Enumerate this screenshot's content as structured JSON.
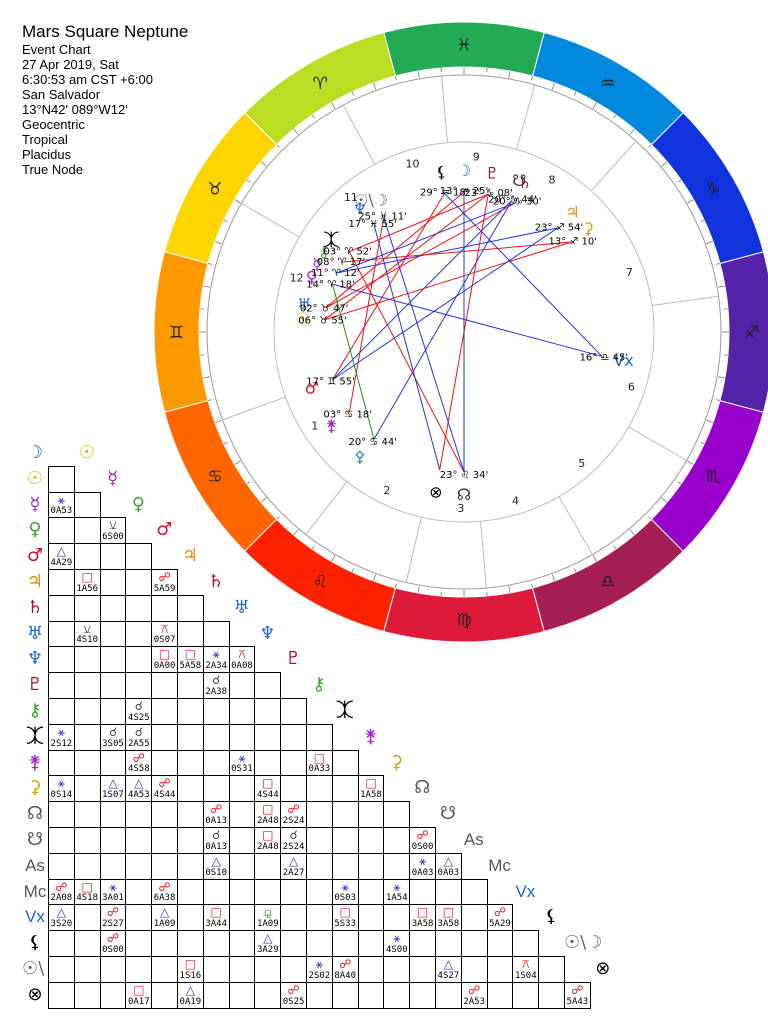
{
  "header": {
    "title": "Mars Square Neptune",
    "lines": [
      "Event Chart",
      "27 Apr 2019, Sat",
      "6:30:53 am  CST +6:00",
      "San Salvador",
      "13°N42' 089°W12'",
      "Geocentric",
      "Tropical",
      "Placidus",
      "True Node"
    ]
  },
  "colors": {
    "wheel": [
      "#ffd500",
      "#ff9900",
      "#ff6600",
      "#ff2200",
      "#dd1a3a",
      "#a51f55",
      "#9900cc",
      "#5522aa",
      "#1133dd",
      "#0088dd",
      "#22aa55",
      "#bbdd22"
    ],
    "aspect_red": "#ee1111",
    "aspect_blue": "#2233dd",
    "aspect_green": "#119911"
  },
  "wheel": {
    "signs": [
      "♉",
      "♊",
      "♋",
      "♌",
      "♍",
      "♎",
      "♏",
      "♐",
      "♑",
      "♒",
      "♓",
      "♈"
    ],
    "sign_colors": [
      "#333333",
      "#333333",
      "#333333",
      "#333333",
      "#333333",
      "#333333",
      "#333333",
      "#333333",
      "#333333",
      "#333333",
      "#333333",
      "#333333"
    ],
    "houses": [
      "1",
      "2",
      "3",
      "4",
      "5",
      "6",
      "7",
      "8",
      "9",
      "10",
      "11",
      "12"
    ],
    "angle_labels": [
      {
        "glyph": "Vx",
        "color": "#1a66cc"
      },
      {
        "glyph": "☊",
        "color": "#333333"
      }
    ],
    "planets": [
      {
        "name": "Lilith",
        "glyph": "⚸",
        "deg": "29°",
        "sign": "♒",
        "min": "18'",
        "color": "#000000"
      },
      {
        "name": "Moon",
        "glyph": "☽",
        "deg": "13°",
        "sign": "♒",
        "min": "25'",
        "color": "#1a66cc"
      },
      {
        "name": "Pluto",
        "glyph": "♇",
        "deg": "23°",
        "sign": "♑",
        "min": "08'",
        "color": "#aa1122"
      },
      {
        "name": "South Node",
        "glyph": "☋",
        "deg": "20°",
        "sign": "♑",
        "min": "44'",
        "color": "#333333"
      },
      {
        "name": "Saturn",
        "glyph": "♄",
        "deg": "20°",
        "sign": "♑",
        "min": "30'",
        "color": "#aa1122"
      },
      {
        "name": "Jupiter",
        "glyph": "♃",
        "deg": "23°",
        "sign": "♐",
        "min": "54'",
        "color": "#ee8800"
      },
      {
        "name": "Ceres",
        "glyph": "⚳",
        "deg": "13°",
        "sign": "♐",
        "min": "10'",
        "color": "#ccaa00"
      },
      {
        "name": "Vertex",
        "glyph": "Vx",
        "deg": "16°",
        "sign": "♎",
        "min": "45'",
        "color": "#1a66cc"
      },
      {
        "name": "North Node",
        "glyph": "☊",
        "deg": "23°",
        "sign": "♌",
        "min": "34'",
        "color": "#333333"
      },
      {
        "name": "Part of Fortune",
        "glyph": "⊗",
        "deg": "",
        "sign": "",
        "min": "",
        "color": "#000000"
      },
      {
        "name": "Pallas",
        "glyph": "⚴",
        "deg": "20°",
        "sign": "♋",
        "min": "44'",
        "color": "#3388cc"
      },
      {
        "name": "Juno",
        "glyph": "⚵",
        "deg": "03°",
        "sign": "♋",
        "min": "18'",
        "color": "#aa22cc"
      },
      {
        "name": "Mars",
        "glyph": "♂",
        "deg": "17°",
        "sign": "♊",
        "min": "55'",
        "color": "#cc1122"
      },
      {
        "name": "Sun",
        "glyph": "☉",
        "deg": "06°",
        "sign": "♉",
        "min": "55'",
        "color": "#ddbb00"
      },
      {
        "name": "Uranus",
        "glyph": "♅",
        "deg": "02°",
        "sign": "♉",
        "min": "47'",
        "color": "#1a66cc"
      },
      {
        "name": "Venus",
        "glyph": "♀",
        "deg": "14°",
        "sign": "♈",
        "min": "18'",
        "color": "#aa22cc"
      },
      {
        "name": "Mercury",
        "glyph": "☿",
        "deg": "11°",
        "sign": "♈",
        "min": "12'",
        "color": "#aa22cc"
      },
      {
        "name": "Chiron",
        "glyph": "⚷",
        "deg": "08°",
        "sign": "♈",
        "min": "17'",
        "color": "#33aa22"
      },
      {
        "name": "Eris",
        "glyph": "⯰",
        "deg": "03°",
        "sign": "♈",
        "min": "52'",
        "color": "#000000"
      },
      {
        "name": "Neptune",
        "glyph": "♆",
        "deg": "17°",
        "sign": "♓",
        "min": "55'",
        "color": "#1a66cc"
      },
      {
        "name": "Sun/Moon Midpoint",
        "glyph": "☉\\☽",
        "deg": "25°",
        "sign": "♓",
        "min": "11'",
        "color": "#666666"
      }
    ]
  },
  "grid": {
    "rows": [
      {
        "glyph": "☽",
        "color": "#1a66cc"
      },
      {
        "glyph": "☉",
        "color": "#ddbb00"
      },
      {
        "glyph": "☿",
        "color": "#aa22cc"
      },
      {
        "glyph": "♀",
        "color": "#33aa22"
      },
      {
        "glyph": "♂",
        "color": "#cc1122"
      },
      {
        "glyph": "♃",
        "color": "#ee8800"
      },
      {
        "glyph": "♄",
        "color": "#aa1122"
      },
      {
        "glyph": "♅",
        "color": "#1a66cc"
      },
      {
        "glyph": "♆",
        "color": "#1a66cc"
      },
      {
        "glyph": "♇",
        "color": "#aa1122"
      },
      {
        "glyph": "⚷",
        "color": "#33aa22"
      },
      {
        "glyph": "⯰",
        "color": "#000000"
      },
      {
        "glyph": "⚵",
        "color": "#aa22cc"
      },
      {
        "glyph": "⚳",
        "color": "#ccaa00"
      },
      {
        "glyph": "☊",
        "color": "#555555"
      },
      {
        "glyph": "☋",
        "color": "#555555"
      },
      {
        "glyph": "As",
        "color": "#555555"
      },
      {
        "glyph": "Mc",
        "color": "#555555"
      },
      {
        "glyph": "Vx",
        "color": "#1a66cc"
      },
      {
        "glyph": "⚸",
        "color": "#000000"
      },
      {
        "glyph": "☉\\☽",
        "color": "#666666"
      },
      {
        "glyph": "⊗",
        "color": "#000000"
      }
    ],
    "cells": [
      {
        "r": 2,
        "c": 0,
        "asp": "⚹",
        "orb": "0A53",
        "color": "#2233dd"
      },
      {
        "r": 3,
        "c": 2,
        "asp": "⚺",
        "orb": "6S00",
        "color": "#444444"
      },
      {
        "r": 4,
        "c": 0,
        "asp": "△",
        "orb": "4A29",
        "color": "#2233dd"
      },
      {
        "r": 5,
        "c": 1,
        "asp": "□",
        "orb": "1A56",
        "color": "#ee1111"
      },
      {
        "r": 5,
        "c": 4,
        "asp": "☍",
        "orb": "5A59",
        "color": "#ee1111"
      },
      {
        "r": 7,
        "c": 1,
        "asp": "⚺",
        "orb": "4S10",
        "color": "#444444"
      },
      {
        "r": 7,
        "c": 4,
        "asp": "⚻",
        "orb": "0S07",
        "color": "#ee1111"
      },
      {
        "r": 8,
        "c": 4,
        "asp": "□",
        "orb": "0A00",
        "color": "#ee1111"
      },
      {
        "r": 8,
        "c": 5,
        "asp": "□",
        "orb": "5A58",
        "color": "#ee1111"
      },
      {
        "r": 8,
        "c": 6,
        "asp": "⚹",
        "orb": "2A34",
        "color": "#2233dd"
      },
      {
        "r": 8,
        "c": 7,
        "asp": "⚻",
        "orb": "0A08",
        "color": "#ee1111"
      },
      {
        "r": 9,
        "c": 6,
        "asp": "☌",
        "orb": "2A38",
        "color": "#444444"
      },
      {
        "r": 10,
        "c": 3,
        "asp": "☌",
        "orb": "4S25",
        "color": "#444444"
      },
      {
        "r": 11,
        "c": 0,
        "asp": "⚹",
        "orb": "2S12",
        "color": "#2233dd"
      },
      {
        "r": 11,
        "c": 2,
        "asp": "☌",
        "orb": "3S05",
        "color": "#444444"
      },
      {
        "r": 11,
        "c": 3,
        "asp": "☌",
        "orb": "2A55",
        "color": "#444444"
      },
      {
        "r": 12,
        "c": 3,
        "asp": "☍",
        "orb": "4S58",
        "color": "#ee1111"
      },
      {
        "r": 12,
        "c": 7,
        "asp": "⚹",
        "orb": "0S31",
        "color": "#2233dd"
      },
      {
        "r": 12,
        "c": 10,
        "asp": "□",
        "orb": "0A33",
        "color": "#ee1111"
      },
      {
        "r": 13,
        "c": 0,
        "asp": "⚹",
        "orb": "0S14",
        "color": "#2233dd"
      },
      {
        "r": 13,
        "c": 2,
        "asp": "△",
        "orb": "1S07",
        "color": "#2233dd"
      },
      {
        "r": 13,
        "c": 3,
        "asp": "△",
        "orb": "4A53",
        "color": "#2233dd"
      },
      {
        "r": 13,
        "c": 4,
        "asp": "☍",
        "orb": "4S44",
        "color": "#ee1111"
      },
      {
        "r": 13,
        "c": 8,
        "asp": "□",
        "orb": "4S44",
        "color": "#ee1111"
      },
      {
        "r": 13,
        "c": 12,
        "asp": "□",
        "orb": "1A58",
        "color": "#ee1111"
      },
      {
        "r": 14,
        "c": 6,
        "asp": "☍",
        "orb": "0A13",
        "color": "#ee1111"
      },
      {
        "r": 14,
        "c": 8,
        "asp": "□",
        "orb": "2A48",
        "color": "#ee1111"
      },
      {
        "r": 14,
        "c": 9,
        "asp": "☍",
        "orb": "2S24",
        "color": "#ee1111"
      },
      {
        "r": 15,
        "c": 6,
        "asp": "☌",
        "orb": "0A13",
        "color": "#444444"
      },
      {
        "r": 15,
        "c": 8,
        "asp": "□",
        "orb": "2A48",
        "color": "#ee1111"
      },
      {
        "r": 15,
        "c": 9,
        "asp": "☌",
        "orb": "2S24",
        "color": "#444444"
      },
      {
        "r": 15,
        "c": 14,
        "asp": "☍",
        "orb": "0S00",
        "color": "#ee1111"
      },
      {
        "r": 16,
        "c": 6,
        "asp": "△",
        "orb": "0S10",
        "color": "#2233dd"
      },
      {
        "r": 16,
        "c": 9,
        "asp": "△",
        "orb": "2A27",
        "color": "#2233dd"
      },
      {
        "r": 16,
        "c": 14,
        "asp": "⚹",
        "orb": "0A03",
        "color": "#2233dd"
      },
      {
        "r": 16,
        "c": 15,
        "asp": "△",
        "orb": "0A03",
        "color": "#2233dd"
      },
      {
        "r": 17,
        "c": 0,
        "asp": "☍",
        "orb": "2A08",
        "color": "#ee1111"
      },
      {
        "r": 17,
        "c": 1,
        "asp": "□",
        "orb": "4S18",
        "color": "#ee1111"
      },
      {
        "r": 17,
        "c": 2,
        "asp": "⚹",
        "orb": "3A01",
        "color": "#2233dd"
      },
      {
        "r": 17,
        "c": 4,
        "asp": "☍",
        "orb": "6A38",
        "color": "#ee1111"
      },
      {
        "r": 17,
        "c": 11,
        "asp": "⚹",
        "orb": "0S03",
        "color": "#2233dd"
      },
      {
        "r": 17,
        "c": 13,
        "asp": "⚹",
        "orb": "1A54",
        "color": "#2233dd"
      },
      {
        "r": 18,
        "c": 0,
        "asp": "△",
        "orb": "3S20",
        "color": "#2233dd"
      },
      {
        "r": 18,
        "c": 2,
        "asp": "☍",
        "orb": "2S27",
        "color": "#ee1111"
      },
      {
        "r": 18,
        "c": 4,
        "asp": "△",
        "orb": "1A09",
        "color": "#2233dd"
      },
      {
        "r": 18,
        "c": 6,
        "asp": "□",
        "orb": "3A44",
        "color": "#ee1111"
      },
      {
        "r": 18,
        "c": 8,
        "asp": "⚼",
        "orb": "1A09",
        "color": "#119911"
      },
      {
        "r": 18,
        "c": 11,
        "asp": "□",
        "orb": "5S33",
        "color": "#ee1111"
      },
      {
        "r": 18,
        "c": 14,
        "asp": "□",
        "orb": "3A58",
        "color": "#ee1111"
      },
      {
        "r": 18,
        "c": 15,
        "asp": "□",
        "orb": "3A58",
        "color": "#ee1111"
      },
      {
        "r": 18,
        "c": 17,
        "asp": "☍",
        "orb": "5A29",
        "color": "#ee1111"
      },
      {
        "r": 19,
        "c": 2,
        "asp": "☍",
        "orb": "0S00",
        "color": "#ee1111"
      },
      {
        "r": 19,
        "c": 8,
        "asp": "△",
        "orb": "3A29",
        "color": "#2233dd"
      },
      {
        "r": 19,
        "c": 13,
        "asp": "⚹",
        "orb": "4S00",
        "color": "#2233dd"
      },
      {
        "r": 20,
        "c": 5,
        "asp": "□",
        "orb": "1S16",
        "color": "#ee1111"
      },
      {
        "r": 20,
        "c": 10,
        "asp": "⚹",
        "orb": "2S02",
        "color": "#2233dd"
      },
      {
        "r": 20,
        "c": 11,
        "asp": "☍",
        "orb": "8A40",
        "color": "#ee1111"
      },
      {
        "r": 20,
        "c": 15,
        "asp": "△",
        "orb": "4S27",
        "color": "#2233dd"
      },
      {
        "r": 20,
        "c": 18,
        "asp": "⚻",
        "orb": "1S04",
        "color": "#ee1111"
      },
      {
        "r": 21,
        "c": 3,
        "asp": "□",
        "orb": "0A17",
        "color": "#ee1111"
      },
      {
        "r": 21,
        "c": 5,
        "asp": "△",
        "orb": "0A19",
        "color": "#2233dd"
      },
      {
        "r": 21,
        "c": 9,
        "asp": "☍",
        "orb": "0S25",
        "color": "#ee1111"
      },
      {
        "r": 21,
        "c": 16,
        "asp": "☍",
        "orb": "2A53",
        "color": "#ee1111"
      },
      {
        "r": 21,
        "c": 20,
        "asp": "☍",
        "orb": "5A43",
        "color": "#ee1111"
      }
    ]
  }
}
